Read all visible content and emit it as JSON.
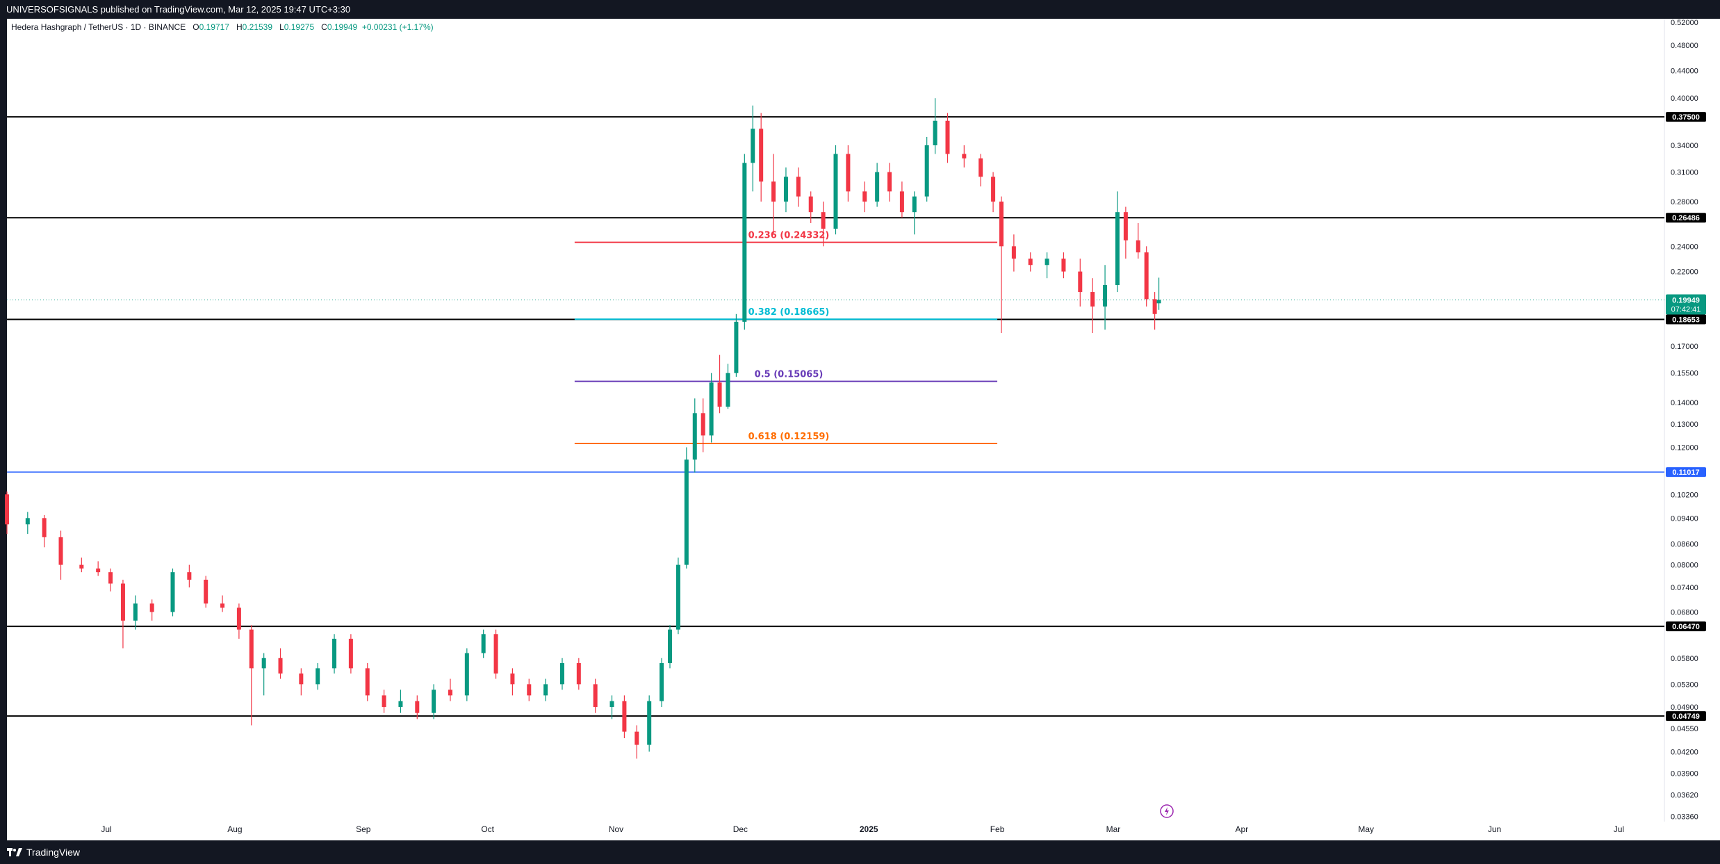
{
  "header": {
    "published": "UNIVERSOFSIGNALS published on TradingView.com, Mar 12, 2025 19:47 UTC+3:30"
  },
  "footer": {
    "brand": "TradingView"
  },
  "legend": {
    "symbol": "Hedera Hashgraph / TetherUS · 1D · BINANCE",
    "o_label": "O",
    "o": "0.19717",
    "h_label": "H",
    "h": "0.21539",
    "l_label": "L",
    "l": "0.19275",
    "c_label": "C",
    "c": "0.19949",
    "change": "+0.00231 (+1.17%)"
  },
  "colors": {
    "up": "#089981",
    "down": "#f23645",
    "background": "#ffffff",
    "frame": "#131722",
    "fib_0236": "#f23645",
    "fib_0382": "#00bcd4",
    "fib_05": "#673ab7",
    "fib_0618": "#ff6d00",
    "blue_level": "#2962ff"
  },
  "chart_data": {
    "type": "candlestick",
    "y_scale": "log",
    "ylim": [
      0.033,
      0.526
    ],
    "xlim": [
      "2024-06-07",
      "2025-07-12"
    ],
    "y_ticks": [
      "0.52000",
      "0.48000",
      "0.44000",
      "0.40000",
      "0.34000",
      "0.31000",
      "0.28000",
      "0.24000",
      "0.22000",
      "0.17000",
      "0.15500",
      "0.14000",
      "0.13000",
      "0.12000",
      "0.10200",
      "0.09400",
      "0.08600",
      "0.08000",
      "0.07400",
      "0.06800",
      "0.05800",
      "0.05300",
      "0.04900",
      "0.04550",
      "0.04200",
      "0.03900",
      "0.03620",
      "0.03360"
    ],
    "x_ticks": [
      {
        "date": "2024-07-01",
        "label": "Jul"
      },
      {
        "date": "2024-08-01",
        "label": "Aug"
      },
      {
        "date": "2024-09-01",
        "label": "Sep"
      },
      {
        "date": "2024-10-01",
        "label": "Oct"
      },
      {
        "date": "2024-11-01",
        "label": "Nov"
      },
      {
        "date": "2024-12-01",
        "label": "Dec"
      },
      {
        "date": "2025-01-01",
        "label": "2025"
      },
      {
        "date": "2025-02-01",
        "label": "Feb"
      },
      {
        "date": "2025-03-01",
        "label": "Mar"
      },
      {
        "date": "2025-04-01",
        "label": "Apr"
      },
      {
        "date": "2025-05-01",
        "label": "May"
      },
      {
        "date": "2025-06-01",
        "label": "Jun"
      },
      {
        "date": "2025-07-01",
        "label": "Jul"
      }
    ],
    "horizontal_levels": [
      {
        "price": 0.375,
        "label": "0.37500",
        "color": "#000000"
      },
      {
        "price": 0.26486,
        "label": "0.26486",
        "color": "#000000"
      },
      {
        "price": 0.18653,
        "label": "0.18653",
        "color": "#000000"
      },
      {
        "price": 0.11017,
        "label": "0.11017",
        "color": "#2962ff"
      },
      {
        "price": 0.0647,
        "label": "0.06470",
        "color": "#000000"
      },
      {
        "price": 0.04749,
        "label": "0.04749",
        "color": "#000000"
      }
    ],
    "fib_levels": [
      {
        "price": 0.24332,
        "label": "0.236 (0.24332)",
        "color": "#f23645",
        "start": "2024-10-22",
        "end": "2025-02-01"
      },
      {
        "price": 0.18665,
        "label": "0.382 (0.18665)",
        "color": "#00bcd4",
        "start": "2024-10-22",
        "end": "2025-02-01"
      },
      {
        "price": 0.15065,
        "label": "0.5 (0.15065)",
        "color": "#673ab7",
        "start": "2024-10-22",
        "end": "2025-02-01"
      },
      {
        "price": 0.12159,
        "label": "0.618 (0.12159)",
        "color": "#ff6d00",
        "start": "2024-10-22",
        "end": "2025-02-01"
      }
    ],
    "last_price": {
      "price": 0.19949,
      "label": "0.19949",
      "countdown": "07:42:41",
      "color": "#089981"
    },
    "series": [
      {
        "values": [
          [
            "2024-06-07",
            0.102,
            0.103,
            0.089,
            0.092
          ],
          [
            "2024-06-12",
            0.092,
            0.096,
            0.089,
            0.094
          ],
          [
            "2024-06-16",
            0.094,
            0.095,
            0.085,
            0.088
          ],
          [
            "2024-06-20",
            0.088,
            0.09,
            0.076,
            0.08
          ],
          [
            "2024-06-25",
            0.08,
            0.082,
            0.078,
            0.079
          ],
          [
            "2024-06-29",
            0.079,
            0.081,
            0.077,
            0.078
          ],
          [
            "2024-07-02",
            0.078,
            0.079,
            0.073,
            0.075
          ],
          [
            "2024-07-05",
            0.075,
            0.076,
            0.06,
            0.066
          ],
          [
            "2024-07-08",
            0.066,
            0.072,
            0.064,
            0.07
          ],
          [
            "2024-07-12",
            0.07,
            0.071,
            0.066,
            0.068
          ],
          [
            "2024-07-17",
            0.068,
            0.079,
            0.067,
            0.078
          ],
          [
            "2024-07-21",
            0.078,
            0.08,
            0.074,
            0.076
          ],
          [
            "2024-07-25",
            0.076,
            0.077,
            0.069,
            0.07
          ],
          [
            "2024-07-29",
            0.07,
            0.072,
            0.068,
            0.069
          ],
          [
            "2024-08-02",
            0.069,
            0.07,
            0.062,
            0.064
          ],
          [
            "2024-08-05",
            0.064,
            0.065,
            0.046,
            0.056
          ],
          [
            "2024-08-08",
            0.056,
            0.059,
            0.051,
            0.058
          ],
          [
            "2024-08-12",
            0.058,
            0.06,
            0.054,
            0.055
          ],
          [
            "2024-08-17",
            0.055,
            0.056,
            0.051,
            0.053
          ],
          [
            "2024-08-21",
            0.053,
            0.057,
            0.052,
            0.056
          ],
          [
            "2024-08-25",
            0.056,
            0.063,
            0.055,
            0.062
          ],
          [
            "2024-08-29",
            0.062,
            0.063,
            0.055,
            0.056
          ],
          [
            "2024-09-02",
            0.056,
            0.057,
            0.05,
            0.051
          ],
          [
            "2024-09-06",
            0.051,
            0.052,
            0.048,
            0.049
          ],
          [
            "2024-09-10",
            0.049,
            0.052,
            0.048,
            0.05
          ],
          [
            "2024-09-14",
            0.05,
            0.051,
            0.047,
            0.048
          ],
          [
            "2024-09-18",
            0.048,
            0.053,
            0.047,
            0.052
          ],
          [
            "2024-09-22",
            0.052,
            0.054,
            0.05,
            0.051
          ],
          [
            "2024-09-26",
            0.051,
            0.06,
            0.05,
            0.059
          ],
          [
            "2024-09-30",
            0.059,
            0.064,
            0.058,
            0.063
          ],
          [
            "2024-10-03",
            0.063,
            0.064,
            0.054,
            0.055
          ],
          [
            "2024-10-07",
            0.055,
            0.056,
            0.051,
            0.053
          ],
          [
            "2024-10-11",
            0.053,
            0.054,
            0.05,
            0.051
          ],
          [
            "2024-10-15",
            0.051,
            0.054,
            0.05,
            0.053
          ],
          [
            "2024-10-19",
            0.053,
            0.058,
            0.052,
            0.057
          ],
          [
            "2024-10-23",
            0.057,
            0.058,
            0.052,
            0.053
          ],
          [
            "2024-10-27",
            0.053,
            0.054,
            0.048,
            0.049
          ],
          [
            "2024-10-31",
            0.049,
            0.051,
            0.047,
            0.05
          ],
          [
            "2024-11-03",
            0.05,
            0.051,
            0.044,
            0.045
          ],
          [
            "2024-11-06",
            0.045,
            0.046,
            0.041,
            0.043
          ],
          [
            "2024-11-09",
            0.043,
            0.051,
            0.042,
            0.05
          ],
          [
            "2024-11-12",
            0.05,
            0.058,
            0.049,
            0.057
          ],
          [
            "2024-11-14",
            0.057,
            0.065,
            0.056,
            0.064
          ],
          [
            "2024-11-16",
            0.064,
            0.082,
            0.063,
            0.08
          ],
          [
            "2024-11-18",
            0.08,
            0.12,
            0.079,
            0.115
          ],
          [
            "2024-11-20",
            0.115,
            0.142,
            0.11,
            0.135
          ],
          [
            "2024-11-22",
            0.135,
            0.142,
            0.118,
            0.125
          ],
          [
            "2024-11-24",
            0.125,
            0.155,
            0.122,
            0.15
          ],
          [
            "2024-11-26",
            0.15,
            0.165,
            0.135,
            0.138
          ],
          [
            "2024-11-28",
            0.138,
            0.16,
            0.137,
            0.155
          ],
          [
            "2024-11-30",
            0.155,
            0.19,
            0.153,
            0.185
          ],
          [
            "2024-12-02",
            0.185,
            0.33,
            0.18,
            0.32
          ],
          [
            "2024-12-04",
            0.32,
            0.39,
            0.29,
            0.36
          ],
          [
            "2024-12-06",
            0.36,
            0.38,
            0.28,
            0.3
          ],
          [
            "2024-12-09",
            0.3,
            0.33,
            0.25,
            0.28
          ],
          [
            "2024-12-12",
            0.28,
            0.315,
            0.27,
            0.305
          ],
          [
            "2024-12-15",
            0.305,
            0.315,
            0.275,
            0.285
          ],
          [
            "2024-12-18",
            0.285,
            0.29,
            0.26,
            0.27
          ],
          [
            "2024-12-21",
            0.27,
            0.28,
            0.24,
            0.255
          ],
          [
            "2024-12-24",
            0.255,
            0.34,
            0.25,
            0.33
          ],
          [
            "2024-12-27",
            0.33,
            0.34,
            0.28,
            0.29
          ],
          [
            "2024-12-31",
            0.29,
            0.3,
            0.27,
            0.28
          ],
          [
            "2025-01-03",
            0.28,
            0.32,
            0.275,
            0.31
          ],
          [
            "2025-01-06",
            0.31,
            0.32,
            0.28,
            0.29
          ],
          [
            "2025-01-09",
            0.29,
            0.3,
            0.265,
            0.27
          ],
          [
            "2025-01-12",
            0.27,
            0.29,
            0.25,
            0.285
          ],
          [
            "2025-01-15",
            0.285,
            0.35,
            0.28,
            0.34
          ],
          [
            "2025-01-17",
            0.34,
            0.4,
            0.33,
            0.37
          ],
          [
            "2025-01-20",
            0.37,
            0.38,
            0.32,
            0.33
          ],
          [
            "2025-01-24",
            0.33,
            0.34,
            0.315,
            0.325
          ],
          [
            "2025-01-28",
            0.325,
            0.33,
            0.295,
            0.305
          ],
          [
            "2025-01-31",
            0.305,
            0.31,
            0.27,
            0.28
          ],
          [
            "2025-02-02",
            0.28,
            0.285,
            0.178,
            0.24
          ],
          [
            "2025-02-05",
            0.24,
            0.25,
            0.22,
            0.23
          ],
          [
            "2025-02-09",
            0.23,
            0.235,
            0.22,
            0.225
          ],
          [
            "2025-02-13",
            0.225,
            0.235,
            0.215,
            0.23
          ],
          [
            "2025-02-17",
            0.23,
            0.235,
            0.215,
            0.22
          ],
          [
            "2025-02-21",
            0.22,
            0.23,
            0.195,
            0.205
          ],
          [
            "2025-02-24",
            0.205,
            0.215,
            0.178,
            0.195
          ],
          [
            "2025-02-27",
            0.195,
            0.225,
            0.18,
            0.21
          ],
          [
            "2025-03-02",
            0.21,
            0.29,
            0.205,
            0.27
          ],
          [
            "2025-03-04",
            0.27,
            0.275,
            0.23,
            0.245
          ],
          [
            "2025-03-07",
            0.245,
            0.26,
            0.23,
            0.235
          ],
          [
            "2025-03-09",
            0.235,
            0.24,
            0.195,
            0.2
          ],
          [
            "2025-03-11",
            0.2,
            0.205,
            0.18,
            0.19
          ],
          [
            "2025-03-12",
            0.19717,
            0.21539,
            0.19275,
            0.19949
          ]
        ]
      }
    ]
  }
}
